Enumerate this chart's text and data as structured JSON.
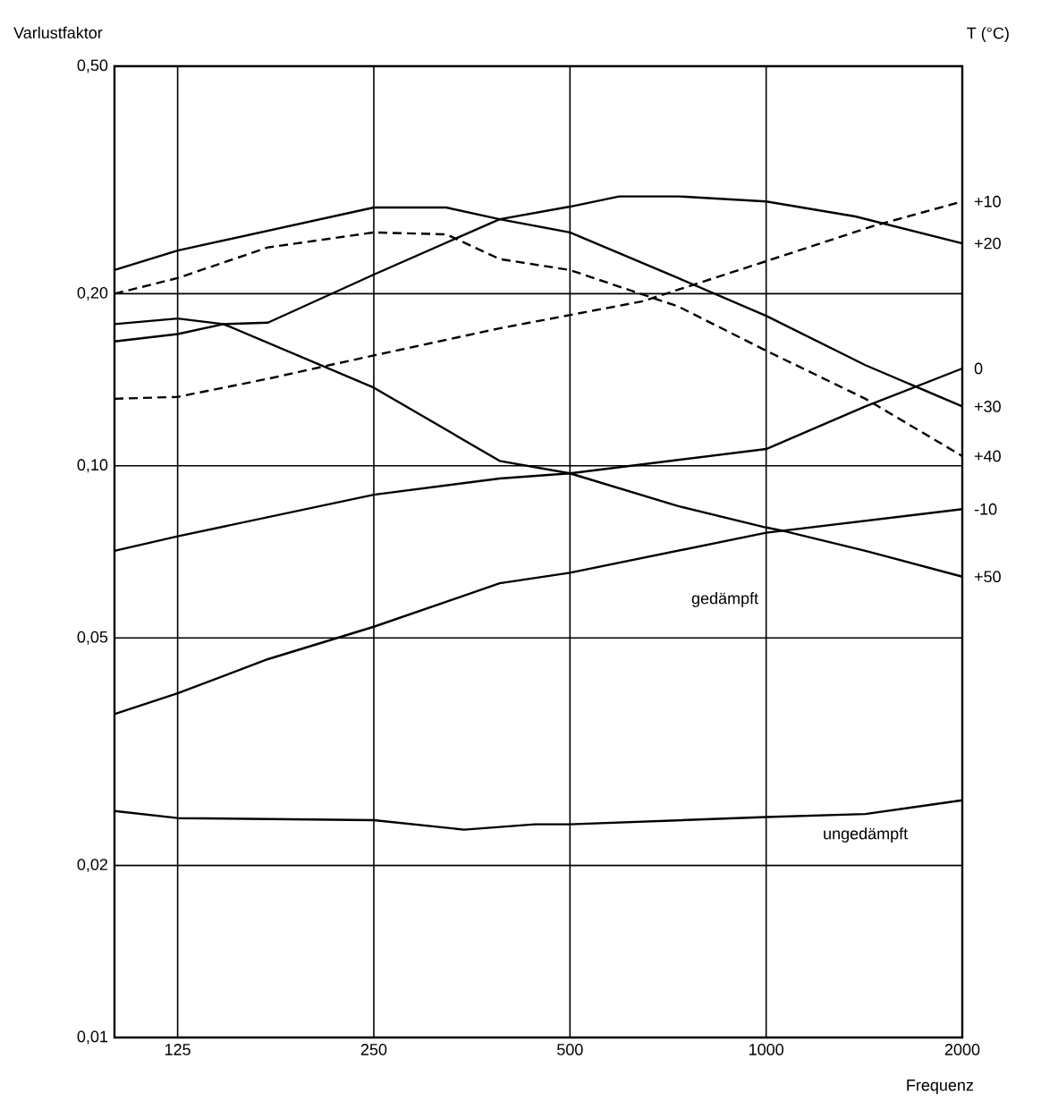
{
  "chart_data": {
    "type": "line",
    "ylabel": "Varlustfaktor",
    "xlabel": "Frequenz",
    "legend_title": "T (°C)",
    "log": "xy",
    "grid": true,
    "marker": "none",
    "xlim": [
      100,
      2000
    ],
    "ylim": [
      0.01,
      0.5
    ],
    "xticks": [
      125,
      250,
      500,
      1000,
      2000
    ],
    "yticks": [
      {
        "value": 0.01,
        "label": "0,01"
      },
      {
        "value": 0.02,
        "label": "0,02"
      },
      {
        "value": 0.05,
        "label": "0,05"
      },
      {
        "value": 0.1,
        "label": "0,10"
      },
      {
        "value": 0.2,
        "label": "0,20"
      },
      {
        "value": 0.5,
        "label": "0,50"
      }
    ],
    "annotations": [
      "gedämpft",
      {
        "text": "ungedämpft",
        "x": 1420,
        "y": 0.0246
      }
    ],
    "series": [
      {
        "name": "+10",
        "color": "#000000",
        "line_style": "dashed",
        "x": [
          100,
          125,
          172,
          250,
          390,
          646,
          1000,
          1465,
          2000
        ],
        "values": [
          0.131,
          0.132,
          0.142,
          0.156,
          0.174,
          0.194,
          0.228,
          0.263,
          0.29
        ]
      },
      {
        "name": "+20",
        "color": "#000000",
        "line_style": "solid",
        "x": [
          100,
          125,
          147,
          172,
          250,
          390,
          500,
          595,
          733,
          1000,
          1370,
          2000
        ],
        "values": [
          0.165,
          0.17,
          0.177,
          0.178,
          0.216,
          0.27,
          0.284,
          0.296,
          0.296,
          0.29,
          0.273,
          0.245
        ]
      },
      {
        "name": "0",
        "color": "#000000",
        "line_style": "solid",
        "x": [
          100,
          125,
          250,
          390,
          500,
          1000,
          1420,
          2000
        ],
        "values": [
          0.071,
          0.0753,
          0.089,
          0.095,
          0.097,
          0.107,
          0.127,
          0.148
        ]
      },
      {
        "name": "+30",
        "color": "#000000",
        "line_style": "solid",
        "x": [
          100,
          125,
          250,
          323,
          390,
          500,
          733,
          1000,
          1420,
          2000
        ],
        "values": [
          0.22,
          0.238,
          0.283,
          0.283,
          0.27,
          0.256,
          0.213,
          0.183,
          0.15,
          0.127
        ]
      },
      {
        "name": "+40",
        "color": "#000000",
        "line_style": "dashed",
        "x": [
          100,
          125,
          172,
          250,
          323,
          390,
          500,
          733,
          1000,
          1420,
          2000
        ],
        "values": [
          0.2,
          0.213,
          0.241,
          0.256,
          0.254,
          0.23,
          0.22,
          0.19,
          0.159,
          0.131,
          0.104
        ]
      },
      {
        "name": "-10",
        "color": "#000000",
        "line_style": "solid",
        "x": [
          100,
          125,
          172,
          250,
          390,
          500,
          1000,
          2000
        ],
        "values": [
          0.0368,
          0.04,
          0.0459,
          0.0523,
          0.0623,
          0.065,
          0.0764,
          0.084
        ]
      },
      {
        "name": "+50",
        "color": "#000000",
        "line_style": "solid",
        "x": [
          100,
          125,
          147,
          250,
          390,
          500,
          733,
          1000,
          1060,
          1420,
          2000
        ],
        "values": [
          0.177,
          0.181,
          0.177,
          0.137,
          0.102,
          0.097,
          0.085,
          0.078,
          0.077,
          0.071,
          0.064
        ]
      },
      {
        "color": "#000000",
        "line_style": "solid",
        "x": [
          100,
          125,
          250,
          344,
          442,
          500,
          1000,
          1420,
          2000
        ],
        "values": [
          0.0249,
          0.0242,
          0.024,
          0.0231,
          0.0236,
          0.0236,
          0.0243,
          0.0246,
          0.026
        ]
      }
    ]
  }
}
